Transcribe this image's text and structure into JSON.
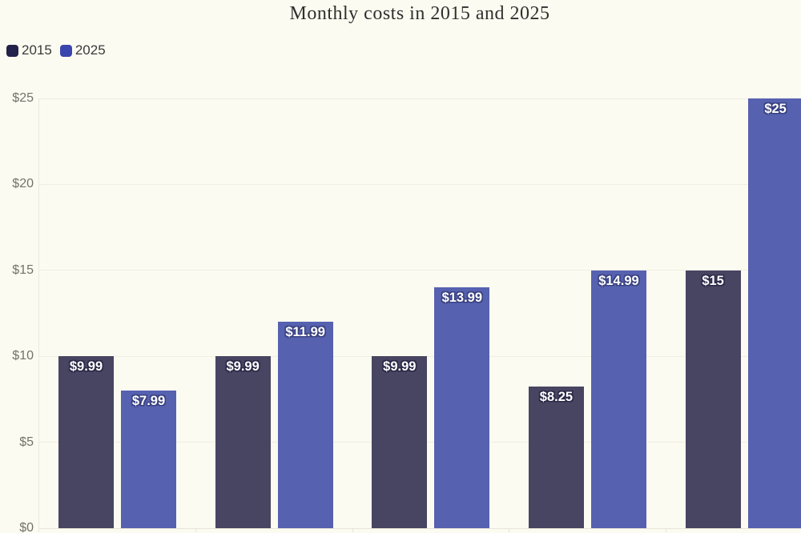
{
  "colors": {
    "background": "#fcfbf1",
    "grid": "#f0eee3",
    "axis": "#e7e5d9",
    "tick_label": "#73726b",
    "title": "#2f2f2f",
    "legend_text": "#3a3a3a",
    "value_label_text": "#ffffff"
  },
  "chart_data": {
    "type": "bar",
    "title": "Monthly costs in 2015 and 2025",
    "groups": 5,
    "series": [
      {
        "name": "2015",
        "swatch_color": "#23224b",
        "bar_color": "#474561",
        "label_outline": "#2b2a49",
        "values": [
          9.99,
          9.99,
          9.99,
          8.25,
          15
        ],
        "labels": [
          "$9.99",
          "$9.99",
          "$9.99",
          "$8.25",
          "$15"
        ]
      },
      {
        "name": "2025",
        "swatch_color": "#3a45ad",
        "bar_color": "#5661b0",
        "label_outline": "#3a4282",
        "values": [
          7.99,
          11.99,
          13.99,
          14.99,
          25
        ],
        "labels": [
          "$7.99",
          "$11.99",
          "$13.99",
          "$14.99",
          "$25"
        ]
      }
    ],
    "y_ticks": [
      {
        "value": 0,
        "label": "$0"
      },
      {
        "value": 5,
        "label": "$5"
      },
      {
        "value": 10,
        "label": "$10"
      },
      {
        "value": 15,
        "label": "$15"
      },
      {
        "value": 20,
        "label": "$20"
      },
      {
        "value": 25,
        "label": "$25"
      }
    ],
    "ylim": [
      0,
      25
    ],
    "grid": true,
    "legend_position": "top-left"
  }
}
